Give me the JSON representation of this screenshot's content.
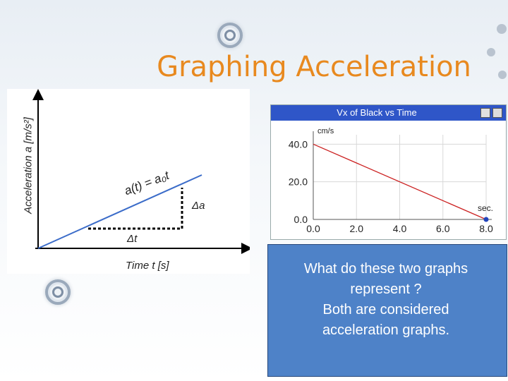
{
  "slide": {
    "title": "Graphing Acceleration",
    "body_lines": [
      "What do these two graphs",
      "represent ?",
      "Both are considered",
      "acceleration graphs."
    ]
  },
  "left_graph": {
    "ylabel": "Acceleration  a  [m/s²]",
    "xlabel": "Time t [s]",
    "equation": "a(t) = a₀t",
    "delta_a": "Δa",
    "delta_t": "Δt"
  },
  "chart_data": {
    "type": "line",
    "title": "Vx of Black vs Time",
    "xlabel": "sec.",
    "ylabel": "cm/s",
    "x_ticks": [
      "0.0",
      "2.0",
      "4.0",
      "6.0",
      "8.0"
    ],
    "y_ticks": [
      "0.0",
      "20.0",
      "40.0"
    ],
    "xlim": [
      0,
      8
    ],
    "ylim": [
      0,
      45
    ],
    "series": [
      {
        "x": [
          0,
          8
        ],
        "y": [
          40,
          0
        ]
      }
    ]
  },
  "colors": {
    "title": "#e8891f",
    "line_blue": "#3b6cc9",
    "line_red": "#cc2222",
    "header": "#2f56c8",
    "textbox": "#4e82c8"
  },
  "icons": [
    "ring-bullet-icon",
    "dot-icon",
    "graph-close-icon",
    "graph-menu-icon"
  ]
}
